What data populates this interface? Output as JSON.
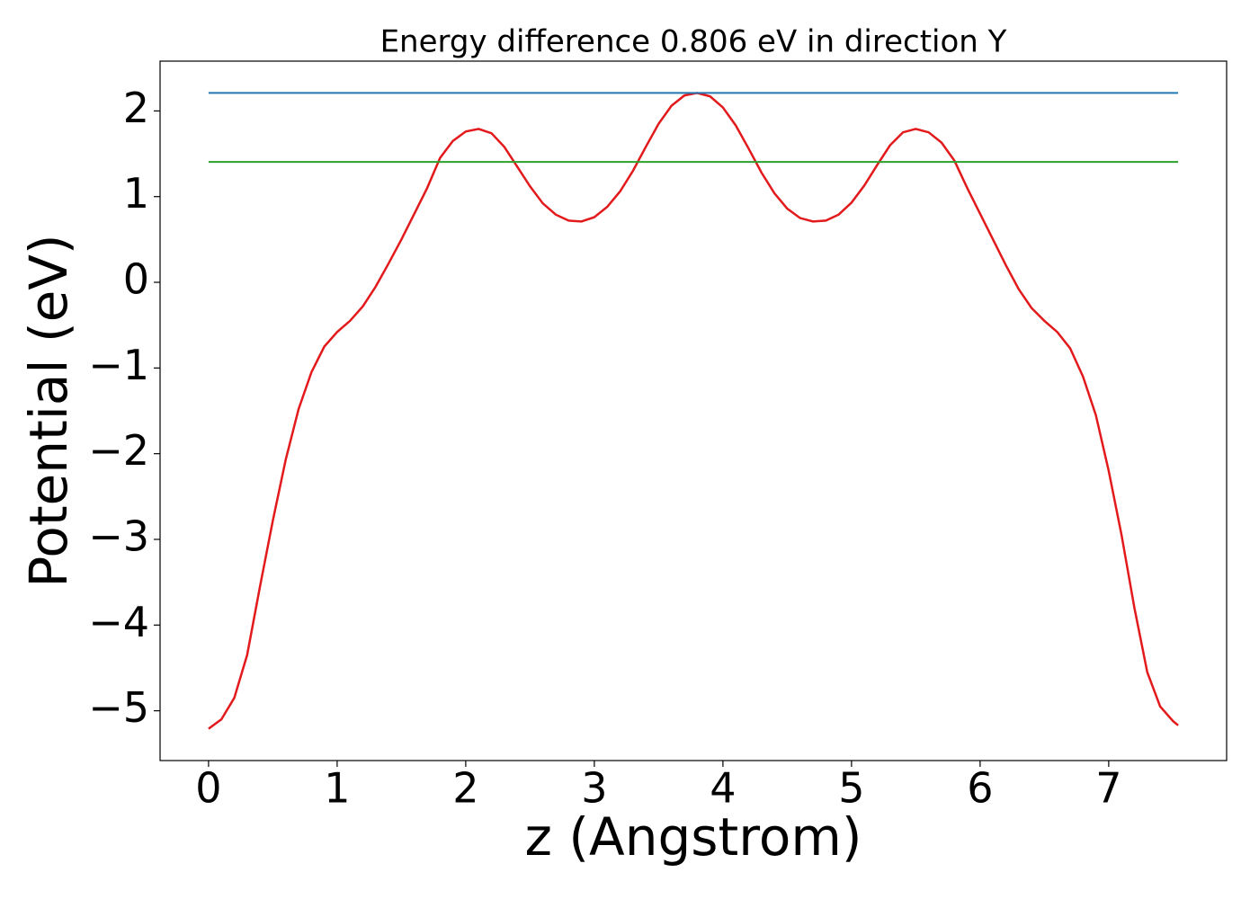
{
  "chart_data": {
    "type": "line",
    "title": "Energy difference 0.806 eV in direction Y",
    "x_label": "z (Angstrom)",
    "y_label": "Potential (eV)",
    "xlim": [
      -0.377,
      7.917
    ],
    "ylim": [
      -5.581,
      2.581
    ],
    "xticks": [
      0,
      1,
      2,
      3,
      4,
      5,
      6,
      7
    ],
    "yticks": [
      {
        "value": -5,
        "label": "−5"
      },
      {
        "value": -4,
        "label": "−4"
      },
      {
        "value": -3,
        "label": "−3"
      },
      {
        "value": -2,
        "label": "−2"
      },
      {
        "value": -1,
        "label": "−1"
      },
      0,
      1,
      2
    ],
    "grid": false,
    "series": [
      {
        "color": "#e31a1c",
        "x": [
          0,
          0.1,
          0.2,
          0.3,
          0.4,
          0.5,
          0.6,
          0.7,
          0.8,
          0.9,
          1.0,
          1.1,
          1.2,
          1.3,
          1.4,
          1.5,
          1.6,
          1.7,
          1.8,
          1.9,
          2.0,
          2.1,
          2.2,
          2.3,
          2.4,
          2.5,
          2.6,
          2.7,
          2.8,
          2.9,
          3.0,
          3.1,
          3.2,
          3.3,
          3.4,
          3.5,
          3.6,
          3.7,
          3.8,
          3.9,
          4.0,
          4.1,
          4.2,
          4.3,
          4.4,
          4.5,
          4.6,
          4.7,
          4.8,
          4.9,
          5.0,
          5.1,
          5.2,
          5.3,
          5.4,
          5.5,
          5.6,
          5.7,
          5.8,
          5.9,
          6.0,
          6.1,
          6.2,
          6.3,
          6.4,
          6.5,
          6.6,
          6.7,
          6.8,
          6.9,
          7.0,
          7.1,
          7.2,
          7.3,
          7.4,
          7.5,
          7.54
        ],
        "values": [
          -5.21,
          -5.1,
          -4.85,
          -4.35,
          -3.55,
          -2.78,
          -2.07,
          -1.48,
          -1.05,
          -0.75,
          -0.58,
          -0.45,
          -0.28,
          -0.05,
          0.22,
          0.5,
          0.8,
          1.1,
          1.45,
          1.65,
          1.76,
          1.79,
          1.74,
          1.58,
          1.35,
          1.12,
          0.92,
          0.79,
          0.72,
          0.71,
          0.76,
          0.88,
          1.06,
          1.3,
          1.58,
          1.85,
          2.06,
          2.18,
          2.21,
          2.17,
          2.04,
          1.83,
          1.56,
          1.28,
          1.04,
          0.86,
          0.75,
          0.71,
          0.72,
          0.79,
          0.93,
          1.13,
          1.37,
          1.6,
          1.75,
          1.79,
          1.75,
          1.63,
          1.42,
          1.1,
          0.8,
          0.5,
          0.2,
          -0.08,
          -0.3,
          -0.45,
          -0.58,
          -0.77,
          -1.1,
          -1.55,
          -2.2,
          -2.95,
          -3.8,
          -4.55,
          -4.95,
          -5.12,
          -5.17
        ]
      },
      {
        "color": "#1f77b4",
        "x": [
          0,
          7.54
        ],
        "values": [
          2.21,
          2.21
        ]
      },
      {
        "color": "#2ca02c",
        "x": [
          0,
          7.54
        ],
        "values": [
          1.405,
          1.405
        ]
      }
    ]
  }
}
